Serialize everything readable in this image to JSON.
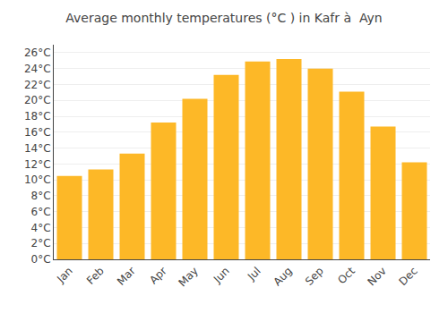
{
  "chart_data": {
    "type": "bar",
    "title": "Average monthly temperatures (°C ) in Kafr à  Ayn",
    "categories": [
      "Jan",
      "Feb",
      "Mar",
      "Apr",
      "May",
      "Jun",
      "Jul",
      "Aug",
      "Sep",
      "Oct",
      "Nov",
      "Dec"
    ],
    "values": [
      10.5,
      11.3,
      13.3,
      17.2,
      20.2,
      23.2,
      24.9,
      25.2,
      24.0,
      21.1,
      16.7,
      12.2
    ],
    "color": "#FDB827",
    "ylim": [
      0,
      27
    ],
    "yticks": [
      {
        "value": 0,
        "label": "0°C"
      },
      {
        "value": 2,
        "label": "2°C"
      },
      {
        "value": 4,
        "label": "4°C"
      },
      {
        "value": 6,
        "label": "6°C"
      },
      {
        "value": 8,
        "label": "8°C"
      },
      {
        "value": 10,
        "label": "10°C"
      },
      {
        "value": 12,
        "label": "12°C"
      },
      {
        "value": 14,
        "label": "14°C"
      },
      {
        "value": 16,
        "label": "16°C"
      },
      {
        "value": 18,
        "label": "18°C"
      },
      {
        "value": 20,
        "label": "20°C"
      },
      {
        "value": 22,
        "label": "22°C"
      },
      {
        "value": 24,
        "label": "24°C"
      },
      {
        "value": 26,
        "label": "26°C"
      }
    ],
    "grid": true
  }
}
